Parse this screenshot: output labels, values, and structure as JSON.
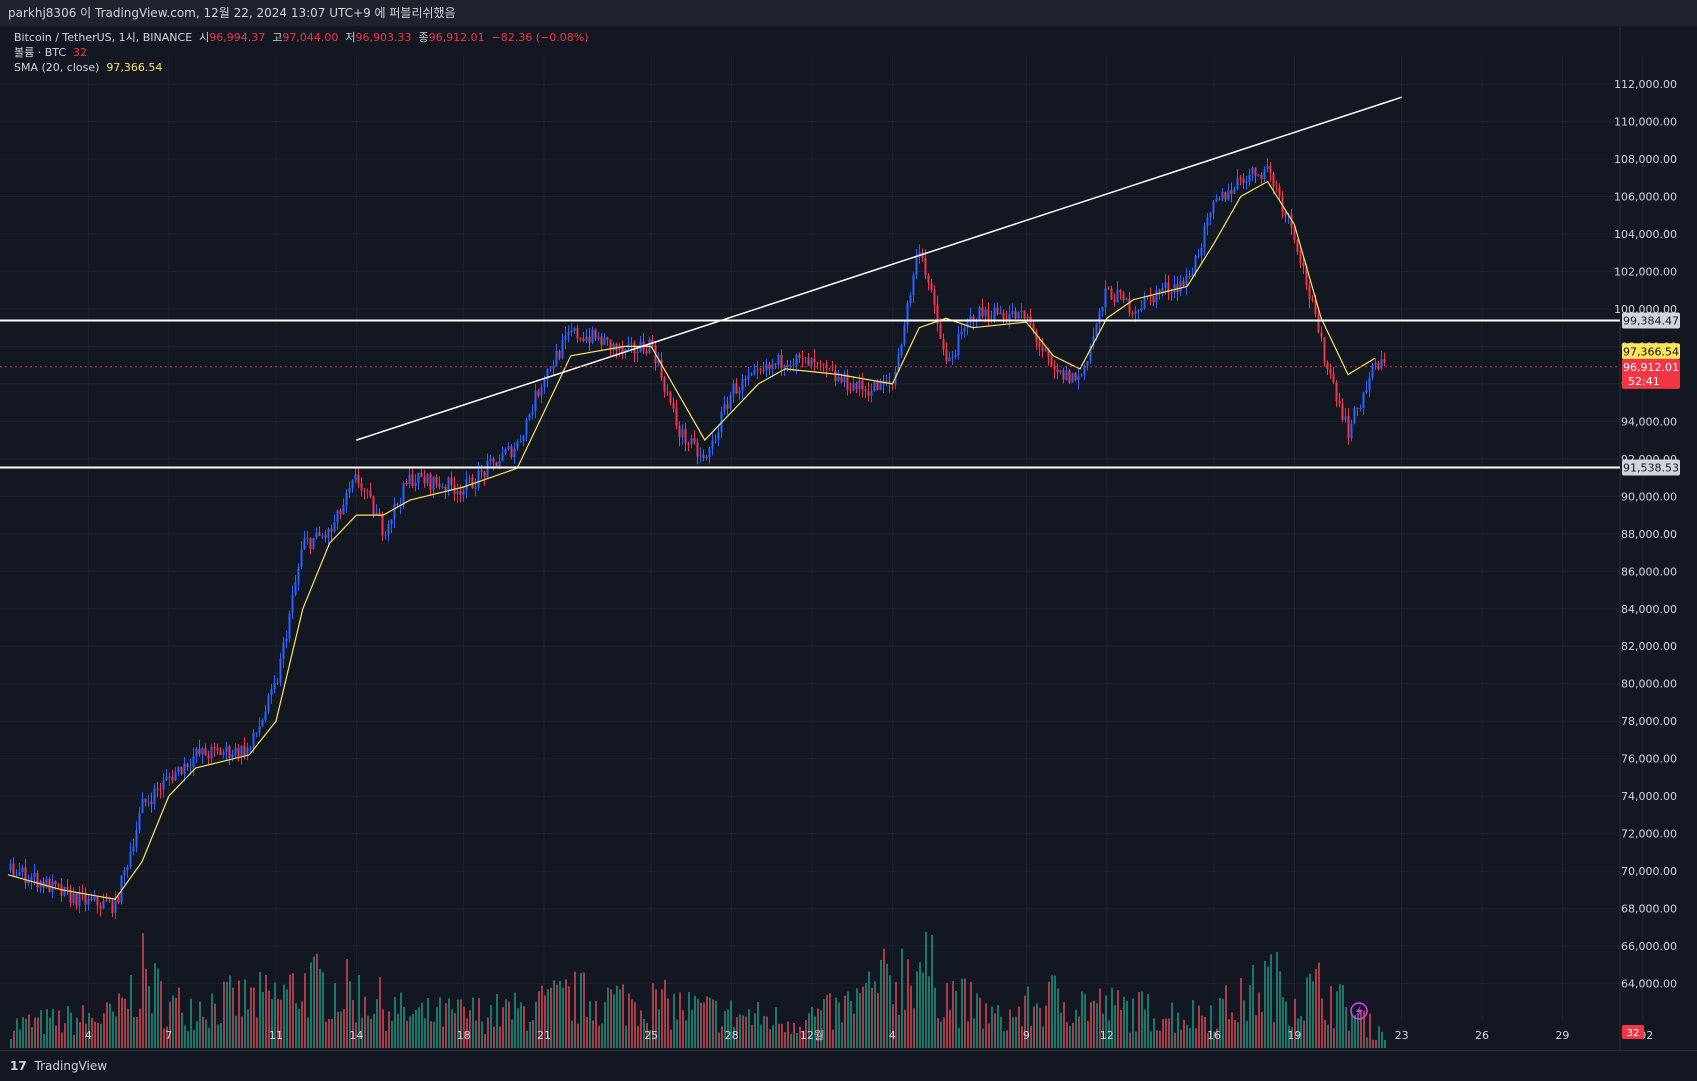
{
  "header": {
    "publish_text": "parkhj8306 이 TradingView.com, 12월 22, 2024 13:07 UTC+9 에 퍼블리쉬했음"
  },
  "legend": {
    "symbol": "Bitcoin / TetherUS, 1시, BINANCE",
    "o_label": "시",
    "o_value": "96,994.37",
    "h_label": "고",
    "h_value": "97,044.00",
    "l_label": "저",
    "l_value": "96,903.33",
    "c_label": "종",
    "c_value": "96,912.01",
    "change": "−82.36 (−0.08%)",
    "volume_label": "볼륨 · BTC",
    "volume_value": "32",
    "sma_label": "SMA (20, close)",
    "sma_value": "97,366.54"
  },
  "footer": {
    "brand": "TradingView",
    "logo_glyph": "17"
  },
  "colors": {
    "background": "#131722",
    "up": "#2962ff",
    "down": "#f23645",
    "sma": "#fbe35a",
    "volume_up": "#22ab94",
    "volume_down": "#f7525f",
    "grid": "#1e222d",
    "trendline": "#ffffff"
  },
  "chart_data": {
    "type": "candlestick",
    "title": "Bitcoin / TetherUS, 1시, BINANCE",
    "ylim": [
      62000,
      113500
    ],
    "yticks": [
      "64,000.00",
      "66,000.00",
      "68,000.00",
      "70,000.00",
      "72,000.00",
      "74,000.00",
      "76,000.00",
      "78,000.00",
      "80,000.00",
      "82,000.00",
      "84,000.00",
      "86,000.00",
      "88,000.00",
      "90,000.00",
      "92,000.00",
      "94,000.00",
      "96,000.00",
      "98,000.00",
      "100,000.00",
      "102,000.00",
      "104,000.00",
      "106,000.00",
      "108,000.00",
      "110,000.00",
      "112,000.00"
    ],
    "xticks": [
      "4",
      "7",
      "11",
      "14",
      "18",
      "21",
      "25",
      "28",
      "12월",
      "4",
      "9",
      "12",
      "16",
      "19",
      "23",
      "26",
      "29",
      "202"
    ],
    "grid": true,
    "price_path": [
      {
        "x": "11-01",
        "y": 70100
      },
      {
        "x": "11-02",
        "y": 69600
      },
      {
        "x": "11-03",
        "y": 68800
      },
      {
        "x": "11-04",
        "y": 68300
      },
      {
        "x": "11-05",
        "y": 68200
      },
      {
        "x": "11-06",
        "y": 73500
      },
      {
        "x": "11-07",
        "y": 75000
      },
      {
        "x": "11-08",
        "y": 76200
      },
      {
        "x": "11-10",
        "y": 76500
      },
      {
        "x": "11-11",
        "y": 80000
      },
      {
        "x": "11-12",
        "y": 87500
      },
      {
        "x": "11-13",
        "y": 88000
      },
      {
        "x": "11-14",
        "y": 91000
      },
      {
        "x": "11-15",
        "y": 88200
      },
      {
        "x": "11-16",
        "y": 91000
      },
      {
        "x": "11-18",
        "y": 90400
      },
      {
        "x": "11-19",
        "y": 91600
      },
      {
        "x": "11-20",
        "y": 92800
      },
      {
        "x": "11-21",
        "y": 96500
      },
      {
        "x": "11-22",
        "y": 98700
      },
      {
        "x": "11-23",
        "y": 98400
      },
      {
        "x": "11-24",
        "y": 97600
      },
      {
        "x": "11-25",
        "y": 98200
      },
      {
        "x": "11-26",
        "y": 93500
      },
      {
        "x": "11-27",
        "y": 91800
      },
      {
        "x": "11-28",
        "y": 95700
      },
      {
        "x": "11-29",
        "y": 96400
      },
      {
        "x": "11-30",
        "y": 97400
      },
      {
        "x": "12-01",
        "y": 97000
      },
      {
        "x": "12-02",
        "y": 96200
      },
      {
        "x": "12-03",
        "y": 95700
      },
      {
        "x": "12-04",
        "y": 96000
      },
      {
        "x": "12-05",
        "y": 103500
      },
      {
        "x": "12-06",
        "y": 97000
      },
      {
        "x": "12-07",
        "y": 99700
      },
      {
        "x": "12-08",
        "y": 99800
      },
      {
        "x": "12-09",
        "y": 99500
      },
      {
        "x": "12-10",
        "y": 96500
      },
      {
        "x": "12-11",
        "y": 96300
      },
      {
        "x": "12-12",
        "y": 101000
      },
      {
        "x": "12-13",
        "y": 100000
      },
      {
        "x": "12-14",
        "y": 101000
      },
      {
        "x": "12-15",
        "y": 101500
      },
      {
        "x": "12-16",
        "y": 105500
      },
      {
        "x": "12-17",
        "y": 107000
      },
      {
        "x": "12-18",
        "y": 107500
      },
      {
        "x": "12-19",
        "y": 104000
      },
      {
        "x": "12-20",
        "y": 98000
      },
      {
        "x": "12-21",
        "y": 93500
      },
      {
        "x": "12-22",
        "y": 97000
      },
      {
        "x": "12-23",
        "y": 96912
      }
    ],
    "sma_path": [
      {
        "x": "11-01",
        "y": 69800
      },
      {
        "x": "11-03",
        "y": 69000
      },
      {
        "x": "11-05",
        "y": 68500
      },
      {
        "x": "11-06",
        "y": 70500
      },
      {
        "x": "11-07",
        "y": 74000
      },
      {
        "x": "11-08",
        "y": 75500
      },
      {
        "x": "11-10",
        "y": 76200
      },
      {
        "x": "11-11",
        "y": 78000
      },
      {
        "x": "11-12",
        "y": 84000
      },
      {
        "x": "11-13",
        "y": 87500
      },
      {
        "x": "11-14",
        "y": 89000
      },
      {
        "x": "11-15",
        "y": 89000
      },
      {
        "x": "11-16",
        "y": 89800
      },
      {
        "x": "11-18",
        "y": 90500
      },
      {
        "x": "11-20",
        "y": 91500
      },
      {
        "x": "11-21",
        "y": 94500
      },
      {
        "x": "11-22",
        "y": 97500
      },
      {
        "x": "11-24",
        "y": 98000
      },
      {
        "x": "11-25",
        "y": 98000
      },
      {
        "x": "11-26",
        "y": 95500
      },
      {
        "x": "11-27",
        "y": 93000
      },
      {
        "x": "11-28",
        "y": 94500
      },
      {
        "x": "11-29",
        "y": 96000
      },
      {
        "x": "11-30",
        "y": 96800
      },
      {
        "x": "12-02",
        "y": 96500
      },
      {
        "x": "12-04",
        "y": 96000
      },
      {
        "x": "12-05",
        "y": 99000
      },
      {
        "x": "12-06",
        "y": 99500
      },
      {
        "x": "12-07",
        "y": 99000
      },
      {
        "x": "12-09",
        "y": 99300
      },
      {
        "x": "12-10",
        "y": 97500
      },
      {
        "x": "12-11",
        "y": 96800
      },
      {
        "x": "12-12",
        "y": 99500
      },
      {
        "x": "12-13",
        "y": 100500
      },
      {
        "x": "12-15",
        "y": 101200
      },
      {
        "x": "12-16",
        "y": 103500
      },
      {
        "x": "12-17",
        "y": 106000
      },
      {
        "x": "12-18",
        "y": 106800
      },
      {
        "x": "12-19",
        "y": 104500
      },
      {
        "x": "12-20",
        "y": 99500
      },
      {
        "x": "12-21",
        "y": 96500
      },
      {
        "x": "12-22",
        "y": 97366
      }
    ],
    "volume_profile": [
      {
        "x": "11-01",
        "v": 0.25
      },
      {
        "x": "11-05",
        "v": 0.35
      },
      {
        "x": "11-06",
        "v": 0.8
      },
      {
        "x": "11-07",
        "v": 0.45
      },
      {
        "x": "11-11",
        "v": 0.55
      },
      {
        "x": "11-12",
        "v": 0.7
      },
      {
        "x": "11-13",
        "v": 0.65
      },
      {
        "x": "11-14",
        "v": 0.6
      },
      {
        "x": "11-16",
        "v": 0.35
      },
      {
        "x": "11-20",
        "v": 0.4
      },
      {
        "x": "11-22",
        "v": 0.55
      },
      {
        "x": "11-25",
        "v": 0.5
      },
      {
        "x": "11-27",
        "v": 0.4
      },
      {
        "x": "11-30",
        "v": 0.3
      },
      {
        "x": "12-02",
        "v": 0.4
      },
      {
        "x": "12-05",
        "v": 0.95
      },
      {
        "x": "12-06",
        "v": 0.6
      },
      {
        "x": "12-08",
        "v": 0.3
      },
      {
        "x": "12-10",
        "v": 0.55
      },
      {
        "x": "12-12",
        "v": 0.45
      },
      {
        "x": "12-15",
        "v": 0.35
      },
      {
        "x": "12-17",
        "v": 0.5
      },
      {
        "x": "12-18",
        "v": 0.75
      },
      {
        "x": "12-19",
        "v": 0.55
      },
      {
        "x": "12-20",
        "v": 0.65
      },
      {
        "x": "12-21",
        "v": 0.4
      },
      {
        "x": "12-22",
        "v": 0.2
      }
    ],
    "horizontal_lines": [
      {
        "price": 99384.47,
        "label": "99,384.47"
      },
      {
        "price": 91538.53,
        "label": "91,538.53"
      }
    ],
    "trendline": {
      "x1": "11-14",
      "y1": 93000,
      "x2": "12-23",
      "y2": 111300
    },
    "price_labels": [
      {
        "label": "97,366.54",
        "price": 97366.54,
        "type": "sma"
      },
      {
        "label": "96,912.01",
        "sub": "52:41",
        "price": 96912.01,
        "type": "last"
      }
    ],
    "volume_label": "32"
  }
}
